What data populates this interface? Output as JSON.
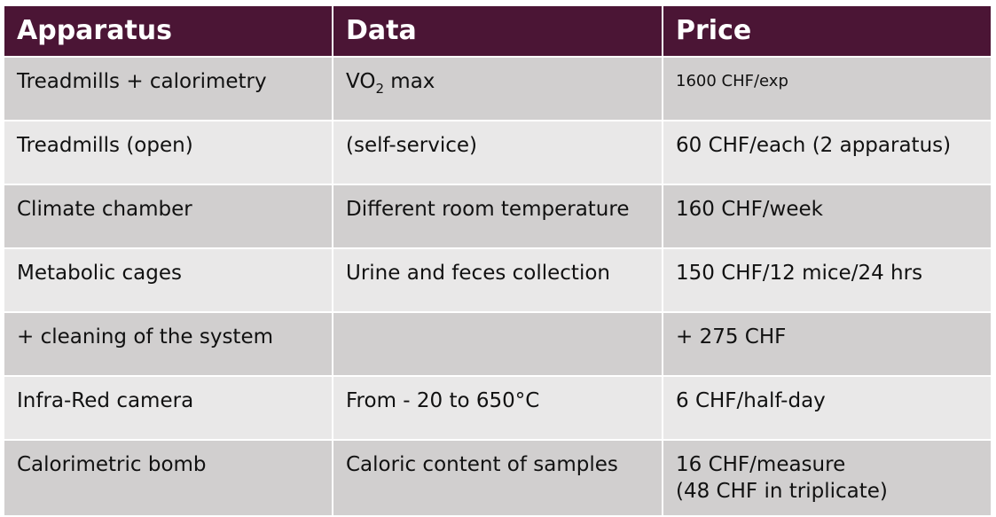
{
  "table": {
    "header": [
      "Apparatus",
      "Data",
      "Price"
    ],
    "rows": [
      {
        "apparatus": "Treadmills + calorimetry",
        "data": [
          "VO",
          "2",
          " max"
        ],
        "price": [
          "1600 CHF/exp"
        ]
      },
      {
        "apparatus": "Treadmills (open)",
        "data": [
          "(self-service)"
        ],
        "price": [
          "60 CHF/each (2 apparatus)"
        ]
      },
      {
        "apparatus": "Climate chamber",
        "data": [
          "Different room temperature"
        ],
        "price": [
          "160 CHF/week"
        ]
      },
      {
        "apparatus": "Metabolic cages",
        "data": [
          "Urine and feces collection"
        ],
        "price": [
          "150 CHF/12 mice/24 hrs"
        ]
      },
      {
        "apparatus": "+ cleaning of the system",
        "data": [],
        "price": [
          "+ 275 CHF"
        ]
      },
      {
        "apparatus": "Infra-Red camera",
        "data": [
          "From - 20 to 650°C"
        ],
        "price": [
          "6 CHF/half-day"
        ]
      },
      {
        "apparatus": "Calorimetric bomb",
        "data": [
          "Caloric content of samples"
        ],
        "price": [
          "16 CHF/measure",
          "(48 CHF in triplicate)"
        ]
      }
    ]
  }
}
